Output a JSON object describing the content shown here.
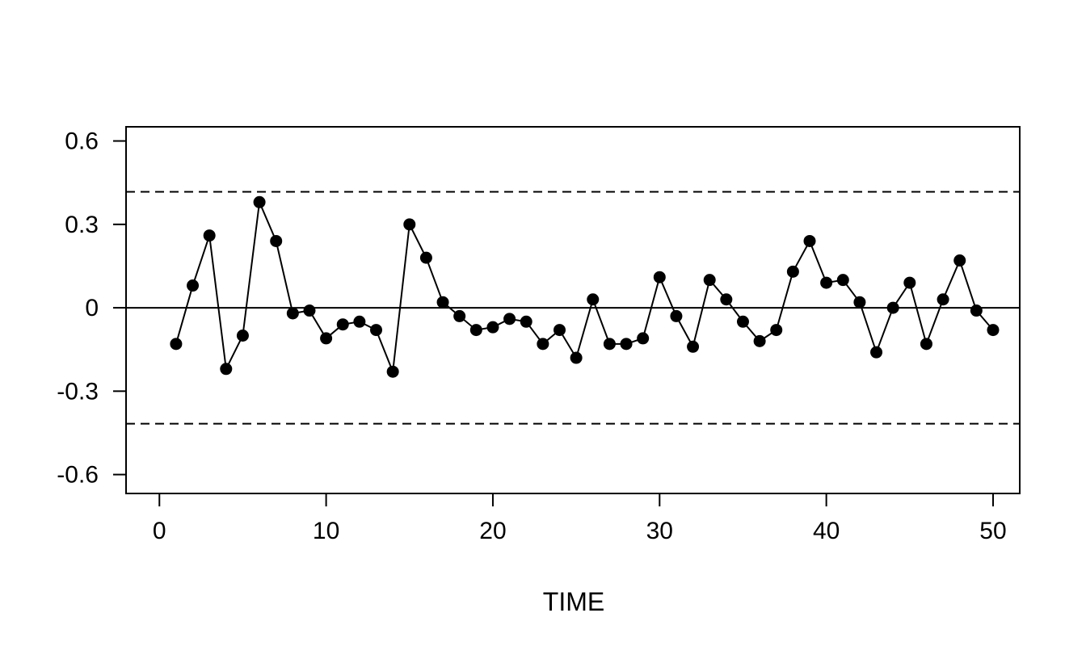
{
  "chart_data": {
    "type": "line",
    "title": "",
    "xlabel": "TIME",
    "ylabel": "",
    "x": [
      1,
      2,
      3,
      4,
      5,
      6,
      7,
      8,
      9,
      10,
      11,
      12,
      13,
      14,
      15,
      16,
      17,
      18,
      19,
      20,
      21,
      22,
      23,
      24,
      25,
      26,
      27,
      28,
      29,
      30,
      31,
      32,
      33,
      34,
      35,
      36,
      37,
      38,
      39,
      40,
      41,
      42,
      43,
      44,
      45,
      46,
      47,
      48,
      49,
      50
    ],
    "values": [
      -0.13,
      0.08,
      0.26,
      -0.22,
      -0.1,
      0.38,
      0.24,
      -0.02,
      -0.01,
      -0.11,
      -0.06,
      -0.05,
      -0.08,
      -0.23,
      0.3,
      0.18,
      0.02,
      -0.03,
      -0.08,
      -0.07,
      -0.04,
      -0.05,
      -0.13,
      -0.08,
      -0.18,
      0.03,
      -0.13,
      -0.13,
      -0.11,
      0.11,
      -0.03,
      -0.14,
      0.1,
      0.03,
      -0.05,
      -0.12,
      -0.08,
      0.13,
      0.24,
      0.09,
      0.1,
      0.02,
      -0.16,
      0.0,
      0.09,
      -0.13,
      0.03,
      0.17,
      -0.01,
      -0.08
    ],
    "xticks": {
      "values": [
        0,
        10,
        20,
        30,
        40,
        50
      ],
      "labels": [
        "0",
        "10",
        "20",
        "30",
        "40",
        "50"
      ]
    },
    "yticks": {
      "values": [
        0.6,
        0.3,
        0,
        -0.3,
        -0.6
      ],
      "labels": [
        "0.6",
        "0.3",
        "0",
        "-0.3",
        "-0.6"
      ]
    },
    "xlim": [
      -2.0,
      51.6
    ],
    "ylim": [
      -0.668,
      0.651
    ],
    "reference_lines": {
      "zero": 0,
      "upper_bound": 0.417,
      "lower_bound": -0.417,
      "bound_style": "dashed"
    },
    "grid": false,
    "legend": "none",
    "marker": "filled-circle",
    "colors": {
      "line": "#000000",
      "marker": "#000000",
      "axis": "#000000",
      "background": "#ffffff"
    }
  }
}
